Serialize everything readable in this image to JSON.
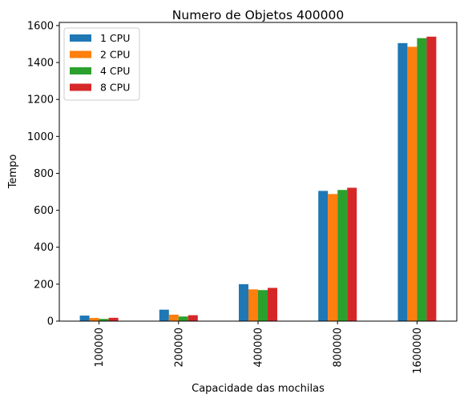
{
  "chart_data": {
    "type": "bar",
    "title": "Numero de Objetos 400000",
    "xlabel": "Capacidade das mochilas",
    "ylabel": "Tempo",
    "categories": [
      "100000",
      "200000",
      "400000",
      "800000",
      "1600000"
    ],
    "series": [
      {
        "name": "1 CPU",
        "color": "#1f77b4",
        "values": [
          30,
          62,
          200,
          705,
          1505
        ]
      },
      {
        "name": "2 CPU",
        "color": "#ff7f0e",
        "values": [
          17,
          35,
          172,
          688,
          1485
        ]
      },
      {
        "name": "4 CPU",
        "color": "#2ca02c",
        "values": [
          12,
          25,
          168,
          710,
          1532
        ]
      },
      {
        "name": "8 CPU",
        "color": "#d62728",
        "values": [
          18,
          32,
          180,
          722,
          1540
        ]
      }
    ],
    "ylim": [
      0,
      1617
    ],
    "yticks": [
      0,
      200,
      400,
      600,
      800,
      1000,
      1200,
      1400,
      1600
    ],
    "grid": false,
    "legend_position": "top-left"
  }
}
